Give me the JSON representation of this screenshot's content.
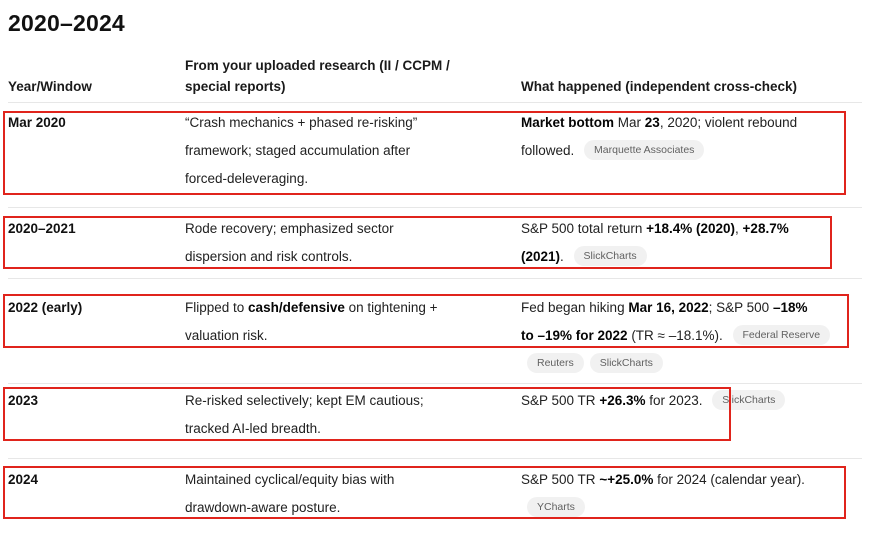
{
  "title": "2020–2024",
  "header": {
    "col1": [
      [
        "Year/Window"
      ]
    ],
    "col2": [
      [
        "From your uploaded research (II / CCPM /"
      ],
      [
        "special reports)"
      ]
    ],
    "col3": [
      [
        "What happened (independent cross-check)"
      ]
    ]
  },
  "rows": [
    {
      "year": "Mar 2020",
      "research": [
        [
          "“Crash mechanics + phased re-risking”"
        ],
        [
          "framework; staged accumulation after"
        ],
        [
          "forced-deleveraging."
        ]
      ],
      "happened": [
        [
          {
            "text": "Market bottom",
            "bold": true
          },
          {
            "text": " Mar "
          },
          {
            "text": "23",
            "bold": true
          },
          {
            "text": ", 2020; violent rebound"
          }
        ],
        [
          {
            "text": "followed. "
          },
          {
            "badge": "Marquette Associates"
          }
        ]
      ]
    },
    {
      "year": "2020–2021",
      "research": [
        [
          "Rode recovery; emphasized sector"
        ],
        [
          "dispersion and risk controls."
        ]
      ],
      "happened": [
        [
          {
            "text": "S&P 500 total return "
          },
          {
            "text": "+18.4% (2020)",
            "bold": true
          },
          {
            "text": ", "
          },
          {
            "text": "+28.7%",
            "bold": true
          }
        ],
        [
          {
            "text": "(2021)",
            "bold": true
          },
          {
            "text": ". "
          },
          {
            "badge": "SlickCharts"
          }
        ]
      ]
    },
    {
      "year": "2022 (early)",
      "research": [
        [
          {
            "text": "Flipped to "
          },
          {
            "text": "cash/defensive",
            "bold": true
          },
          {
            "text": " on tightening +"
          }
        ],
        [
          "valuation risk."
        ]
      ],
      "happened": [
        [
          {
            "text": "Fed began hiking "
          },
          {
            "text": "Mar 16, 2022",
            "bold": true
          },
          {
            "text": "; S&P 500 "
          },
          {
            "text": "–18%",
            "bold": true
          }
        ],
        [
          {
            "text": "to –19% for 2022",
            "bold": true
          },
          {
            "text": " (TR ≈ –18.1%). "
          },
          {
            "badge": "Federal Reserve"
          }
        ],
        [
          {
            "badge": "Reuters"
          },
          {
            "badge": "SlickCharts"
          }
        ]
      ]
    },
    {
      "year": "2023",
      "research": [
        [
          "Re-risked selectively; kept EM cautious;"
        ],
        [
          "tracked AI-led breadth."
        ]
      ],
      "happened": [
        [
          {
            "text": "S&P 500 TR "
          },
          {
            "text": "+26.3%",
            "bold": true
          },
          {
            "text": " for 2023. "
          },
          {
            "badge": "SlickCharts"
          }
        ]
      ]
    },
    {
      "year": "2024",
      "research": [
        [
          "Maintained cyclical/equity bias with"
        ],
        [
          "drawdown-aware posture."
        ]
      ],
      "happened": [
        [
          {
            "text": "S&P 500 TR "
          },
          {
            "text": "~+25.0%",
            "bold": true
          },
          {
            "text": " for 2024 (calendar year)."
          }
        ],
        [
          {
            "badge": "YCharts"
          }
        ]
      ]
    }
  ],
  "colors": {
    "annotation_red": "#e0241c",
    "badge_bg": "#f1f1f1",
    "badge_text": "#616161",
    "divider": "#e7e7e7"
  }
}
